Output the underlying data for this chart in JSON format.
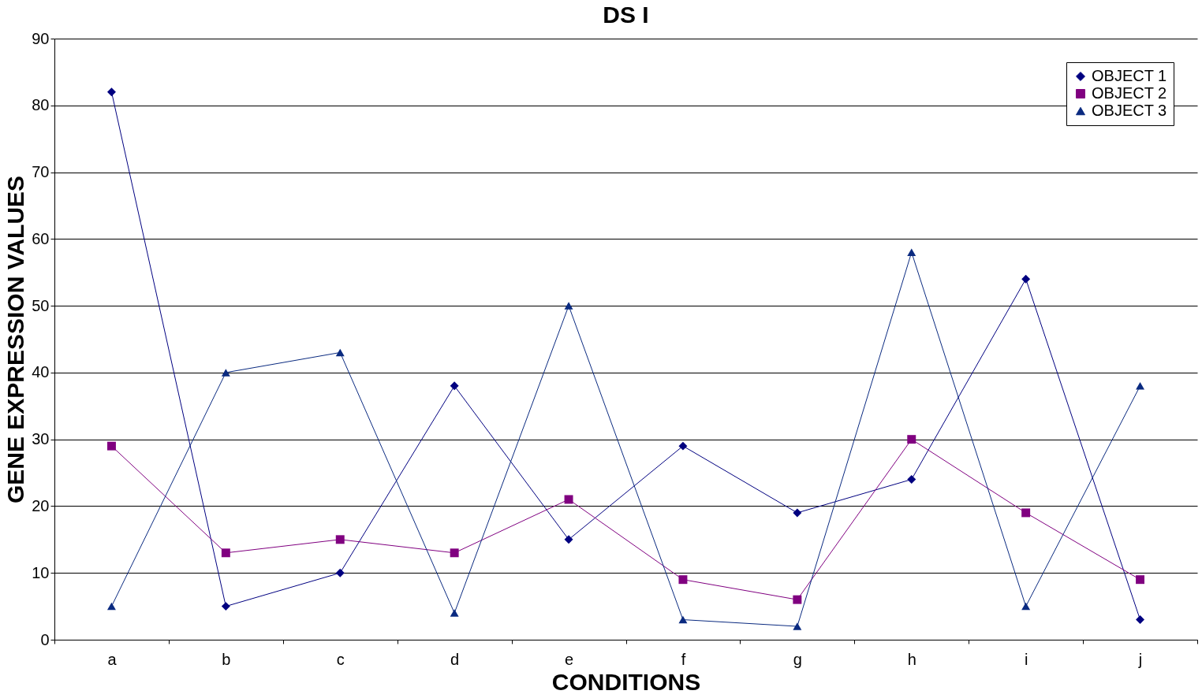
{
  "chart_data": {
    "type": "line",
    "title": "DS I",
    "xlabel": "CONDITIONS",
    "ylabel": "GENE EXPRESSION VALUES",
    "categories": [
      "a",
      "b",
      "c",
      "d",
      "e",
      "f",
      "g",
      "h",
      "i",
      "j"
    ],
    "series": [
      {
        "name": "OBJECT 1",
        "color": "#000080",
        "marker": "diamond",
        "values": [
          82,
          5,
          10,
          38,
          15,
          29,
          19,
          24,
          54,
          3
        ]
      },
      {
        "name": "OBJECT 2",
        "color": "#800080",
        "marker": "square",
        "values": [
          29,
          13,
          15,
          13,
          21,
          9,
          6,
          30,
          19,
          9
        ]
      },
      {
        "name": "OBJECT 3",
        "color": "#0a2a80",
        "marker": "triangle",
        "values": [
          5,
          40,
          43,
          4,
          50,
          3,
          2,
          58,
          5,
          38
        ]
      }
    ],
    "ylim": [
      0,
      90
    ],
    "yticks": [
      0,
      10,
      20,
      30,
      40,
      50,
      60,
      70,
      80,
      90
    ],
    "grid": "y",
    "legend": "top right",
    "line_style": "solid"
  }
}
